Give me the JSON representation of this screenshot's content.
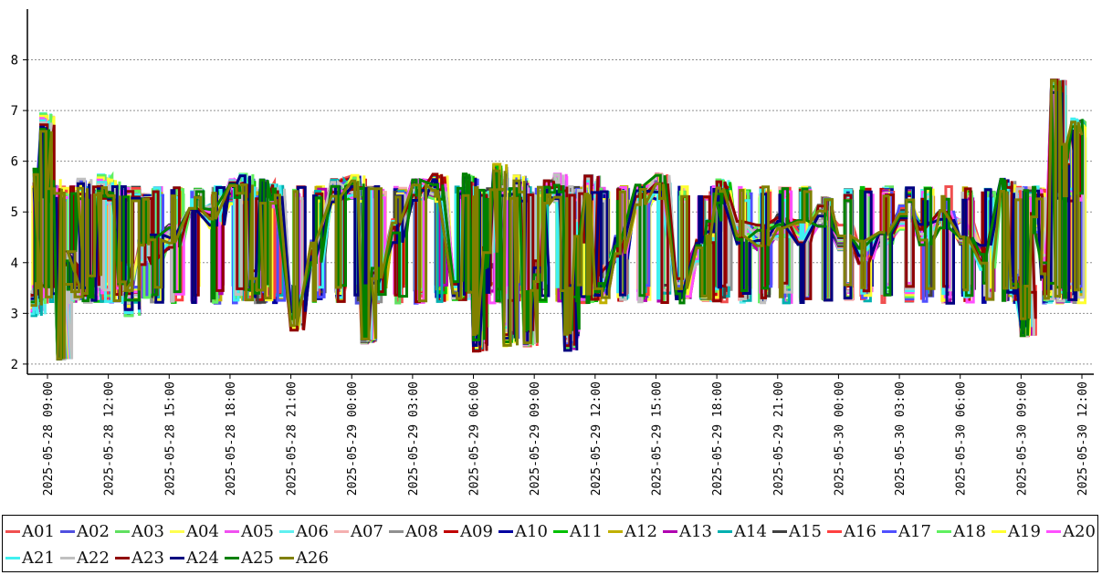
{
  "chart_data": {
    "type": "line",
    "title": "",
    "xlabel": "",
    "ylabel": "",
    "x_range": [
      "2025-05-28 08:10",
      "2025-05-30 12:10"
    ],
    "ylim": [
      1.8,
      9.0
    ],
    "y_ticks": [
      2,
      3,
      4,
      5,
      6,
      7,
      8
    ],
    "x_tick_labels": [
      "2025-05-28 09:00",
      "2025-05-28 12:00",
      "2025-05-28 15:00",
      "2025-05-28 18:00",
      "2025-05-28 21:00",
      "2025-05-29 00:00",
      "2025-05-29 03:00",
      "2025-05-29 06:00",
      "2025-05-29 09:00",
      "2025-05-29 12:00",
      "2025-05-29 15:00",
      "2025-05-29 18:00",
      "2025-05-29 21:00",
      "2025-05-30 00:00",
      "2025-05-30 03:00",
      "2025-05-30 06:00",
      "2025-05-30 09:00",
      "2025-05-30 12:00"
    ],
    "grid": "horizontal dashed",
    "legend_position": "bottom",
    "base_profile": {
      "times": [
        "2025-05-28 08:10",
        "2025-05-28 08:20",
        "2025-05-28 08:40",
        "2025-05-28 09:00",
        "2025-05-28 09:30",
        "2025-05-28 09:50",
        "2025-05-28 10:00",
        "2025-05-28 10:30",
        "2025-05-28 11:00",
        "2025-05-28 11:30",
        "2025-05-28 12:00",
        "2025-05-28 12:30",
        "2025-05-28 12:50",
        "2025-05-28 13:30",
        "2025-05-28 14:00",
        "2025-05-28 15:00",
        "2025-05-28 16:00",
        "2025-05-28 17:00",
        "2025-05-28 18:00",
        "2025-05-28 18:30",
        "2025-05-28 19:00",
        "2025-05-28 19:30",
        "2025-05-28 20:00",
        "2025-05-28 21:00",
        "2025-05-28 22:00",
        "2025-05-28 23:00",
        "2025-05-29 00:00",
        "2025-05-29 00:30",
        "2025-05-29 01:00",
        "2025-05-29 02:00",
        "2025-05-29 03:00",
        "2025-05-29 04:00",
        "2025-05-29 05:00",
        "2025-05-29 05:30",
        "2025-05-29 06:00",
        "2025-05-29 06:30",
        "2025-05-29 07:00",
        "2025-05-29 07:30",
        "2025-05-29 08:00",
        "2025-05-29 08:30",
        "2025-05-29 09:00",
        "2025-05-29 09:30",
        "2025-05-29 10:00",
        "2025-05-29 10:30",
        "2025-05-29 11:00",
        "2025-05-29 11:30",
        "2025-05-29 12:00",
        "2025-05-29 13:00",
        "2025-05-29 14:00",
        "2025-05-29 15:00",
        "2025-05-29 16:00",
        "2025-05-29 17:00",
        "2025-05-29 17:30",
        "2025-05-29 18:00",
        "2025-05-29 19:00",
        "2025-05-29 20:00",
        "2025-05-29 21:00",
        "2025-05-29 22:00",
        "2025-05-29 23:00",
        "2025-05-30 00:00",
        "2025-05-30 01:00",
        "2025-05-30 02:00",
        "2025-05-30 03:00",
        "2025-05-30 04:00",
        "2025-05-30 05:00",
        "2025-05-30 06:00",
        "2025-05-30 07:00",
        "2025-05-30 08:00",
        "2025-05-30 08:30",
        "2025-05-30 09:00",
        "2025-05-30 09:30",
        "2025-05-30 10:00",
        "2025-05-30 10:30",
        "2025-05-30 11:00",
        "2025-05-30 11:30",
        "2025-05-30 12:00"
      ],
      "values": [
        3.2,
        5.6,
        6.7,
        5.4,
        2.2,
        3.8,
        4.3,
        5.4,
        3.6,
        5.5,
        5.4,
        3.8,
        3.2,
        4.2,
        4.3,
        4.5,
        5.0,
        4.9,
        5.4,
        5.5,
        3.6,
        5.4,
        5.3,
        2.9,
        4.2,
        5.4,
        5.5,
        2.3,
        3.7,
        4.6,
        5.4,
        5.5,
        3.5,
        5.5,
        2.5,
        4.1,
        5.7,
        2.6,
        5.5,
        2.6,
        3.8,
        5.4,
        5.5,
        2.5,
        4.6,
        5.5,
        3.6,
        4.3,
        5.3,
        5.5,
        3.5,
        4.2,
        4.6,
        5.4,
        4.6,
        4.5,
        4.7,
        4.6,
        4.9,
        4.5,
        4.2,
        4.5,
        4.9,
        4.6,
        4.9,
        4.6,
        4.1,
        5.4,
        3.6,
        2.7,
        4.8,
        3.9,
        7.5,
        6.1,
        6.6,
        6.6
      ]
    },
    "series": [
      {
        "name": "A01",
        "color": "#f05050"
      },
      {
        "name": "A02",
        "color": "#5050e0"
      },
      {
        "name": "A03",
        "color": "#60e060"
      },
      {
        "name": "A04",
        "color": "#ffff50"
      },
      {
        "name": "A05",
        "color": "#f050f0"
      },
      {
        "name": "A06",
        "color": "#60f0f0"
      },
      {
        "name": "A07",
        "color": "#f4b0b0"
      },
      {
        "name": "A08",
        "color": "#909090"
      },
      {
        "name": "A09",
        "color": "#c00000"
      },
      {
        "name": "A10",
        "color": "#0000a0"
      },
      {
        "name": "A11",
        "color": "#00c000"
      },
      {
        "name": "A12",
        "color": "#c0b000"
      },
      {
        "name": "A13",
        "color": "#b000b0"
      },
      {
        "name": "A14",
        "color": "#00b0b0"
      },
      {
        "name": "A15",
        "color": "#404040"
      },
      {
        "name": "A16",
        "color": "#ff4040"
      },
      {
        "name": "A17",
        "color": "#5050ff"
      },
      {
        "name": "A18",
        "color": "#60f060"
      },
      {
        "name": "A19",
        "color": "#ffff30"
      },
      {
        "name": "A20",
        "color": "#ff50ff"
      },
      {
        "name": "A21",
        "color": "#40f0f0"
      },
      {
        "name": "A22",
        "color": "#c0c0c0"
      },
      {
        "name": "A23",
        "color": "#900000"
      },
      {
        "name": "A24",
        "color": "#000080"
      },
      {
        "name": "A25",
        "color": "#008000"
      },
      {
        "name": "A26",
        "color": "#808000"
      }
    ]
  }
}
